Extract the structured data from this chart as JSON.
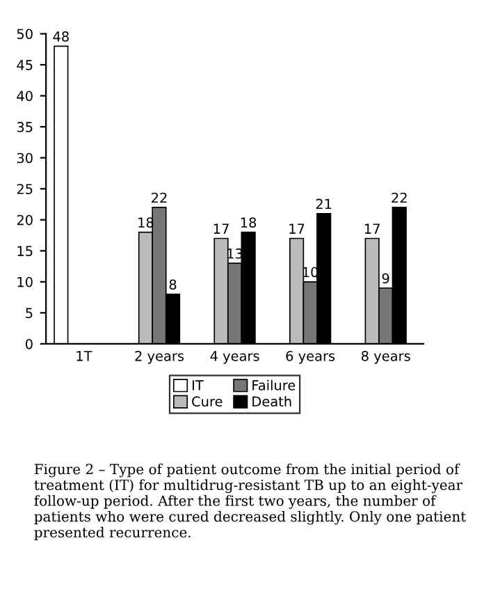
{
  "chart_data": {
    "type": "bar",
    "categories": [
      "1T",
      "2 years",
      "4 years",
      "6 years",
      "8 years"
    ],
    "series": [
      {
        "name": "IT",
        "color": "#ffffff",
        "values": [
          48,
          null,
          null,
          null,
          null
        ]
      },
      {
        "name": "Cure",
        "color": "#bbbbbb",
        "values": [
          null,
          18,
          17,
          17,
          17
        ]
      },
      {
        "name": "Failure",
        "color": "#777777",
        "values": [
          null,
          22,
          13,
          10,
          9
        ]
      },
      {
        "name": "Death",
        "color": "#000000",
        "values": [
          null,
          8,
          18,
          21,
          22
        ]
      }
    ],
    "ylim": [
      0,
      50
    ],
    "yticks": [
      0,
      5,
      10,
      15,
      20,
      25,
      30,
      35,
      40,
      45,
      50
    ],
    "data_labels": true,
    "grid": false,
    "legend": "bottom",
    "annotations": [
      "Figure 2 – Type of patient outcome from the initial period of treatment (IT) for multidrug-resistant TB up to an eight-year follow-up period. After the first two years, the number of patients who were cured decreased slightly. Only one patient presented recurrence."
    ]
  }
}
